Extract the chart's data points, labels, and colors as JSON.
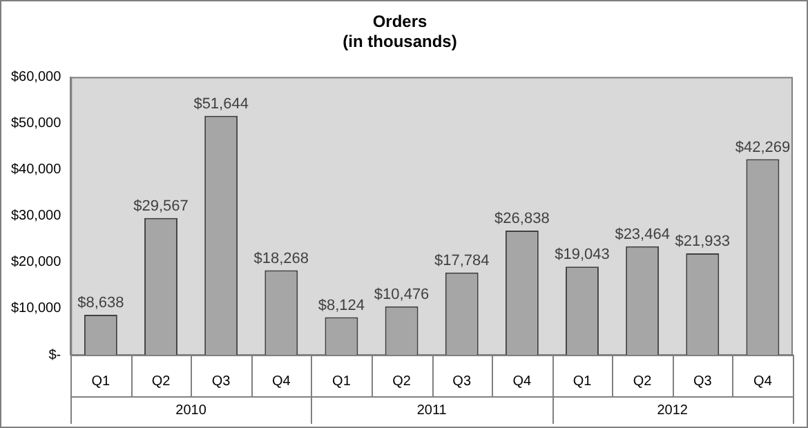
{
  "chart_data": {
    "type": "bar",
    "title": "Orders",
    "subtitle": "(in thousands)",
    "categories": [
      "Q1",
      "Q2",
      "Q3",
      "Q4",
      "Q1",
      "Q2",
      "Q3",
      "Q4",
      "Q1",
      "Q2",
      "Q3",
      "Q4"
    ],
    "values": [
      8638,
      29567,
      51644,
      18268,
      8124,
      10476,
      17784,
      26838,
      19043,
      23464,
      21933,
      42269
    ],
    "value_labels": [
      "$8,638",
      "$29,567",
      "$51,644",
      "$18,268",
      "$8,124",
      "$10,476",
      "$17,784",
      "$26,838",
      "$19,043",
      "$23,464",
      "$21,933",
      "$42,269"
    ],
    "color": "#a6a6a6",
    "annotations": [
      "2010",
      "2011",
      "2012"
    ],
    "ylim": [
      0,
      60000
    ],
    "yticks": [
      {
        "value": 0,
        "label": "$-"
      },
      {
        "value": 10000,
        "label": "$10,000"
      },
      {
        "value": 20000,
        "label": "$20,000"
      },
      {
        "value": 30000,
        "label": "$30,000"
      },
      {
        "value": 40000,
        "label": "$40,000"
      },
      {
        "value": 50000,
        "label": "$50,000"
      },
      {
        "value": 60000,
        "label": "$60,000"
      }
    ],
    "grid": false,
    "legend": false
  }
}
